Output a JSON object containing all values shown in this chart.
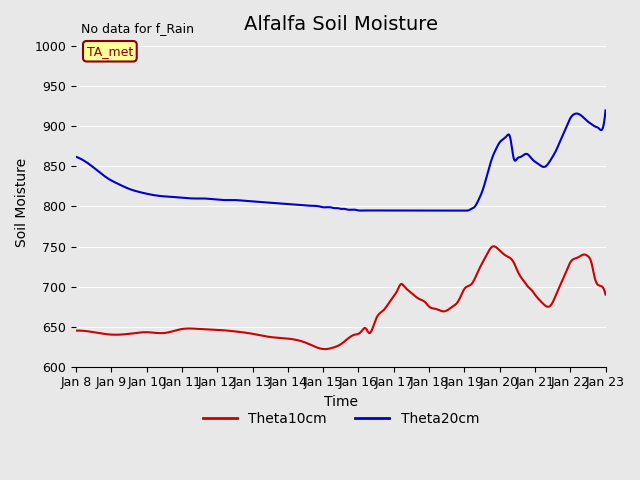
{
  "title": "Alfalfa Soil Moisture",
  "xlabel": "Time",
  "ylabel": "Soil Moisture",
  "annotation_text": "No data for f_Rain",
  "legend_box_text": "TA_met",
  "ylim": [
    600,
    1010
  ],
  "yticks": [
    600,
    650,
    700,
    750,
    800,
    850,
    900,
    950,
    1000
  ],
  "x_labels": [
    "Jan 8",
    "Jan 9",
    "Jan 10",
    "Jan 11",
    "Jan 12",
    "Jan 13",
    "Jan 14",
    "Jan 15",
    "Jan 16",
    "Jan 17",
    "Jan 18",
    "Jan 19",
    "Jan 20",
    "Jan 21",
    "Jan 22",
    "Jan 23"
  ],
  "background_color": "#e8e8e8",
  "plot_bg_color": "#e8e8e8",
  "line_red": "#cc0000",
  "line_blue": "#0000cc",
  "title_fontsize": 14,
  "axis_label_fontsize": 10,
  "tick_fontsize": 9,
  "theta10_x": [
    0,
    0.5,
    1,
    1.5,
    2,
    2.5,
    3,
    3.5,
    4,
    4.5,
    5,
    5.5,
    6,
    6.5,
    7,
    7.1,
    7.3,
    7.5,
    7.7,
    7.9,
    8.0,
    8.1,
    8.2,
    8.3,
    8.5,
    8.7,
    8.9,
    9.0,
    9.1,
    9.2,
    9.3,
    9.5,
    9.7,
    9.9,
    10,
    10.2,
    10.4,
    10.5,
    10.6,
    10.7,
    10.8,
    10.9,
    11,
    11.2,
    11.4,
    11.6,
    11.8,
    12.0,
    12.2,
    12.4,
    12.5,
    12.6,
    12.7,
    12.8,
    12.9,
    13.0,
    13.2,
    13.4,
    13.5,
    13.6,
    13.7,
    13.8,
    13.9,
    14.0,
    14.2,
    14.4,
    14.5,
    14.6,
    14.7,
    14.9,
    15.0
  ],
  "theta10_y": [
    645,
    643,
    640,
    641,
    643,
    642,
    647,
    647,
    646,
    644,
    641,
    637,
    635,
    630,
    622,
    622,
    624,
    628,
    635,
    640,
    641,
    645,
    648,
    642,
    660,
    670,
    682,
    688,
    695,
    703,
    700,
    692,
    685,
    680,
    675,
    672,
    669,
    670,
    673,
    676,
    680,
    688,
    697,
    703,
    720,
    737,
    750,
    745,
    738,
    730,
    720,
    712,
    706,
    700,
    696,
    690,
    680,
    675,
    680,
    690,
    700,
    710,
    720,
    730,
    736,
    740,
    738,
    730,
    710,
    700,
    690
  ],
  "theta20_x": [
    0,
    0.3,
    0.6,
    0.9,
    1.2,
    1.5,
    1.8,
    2.1,
    2.4,
    2.7,
    3.0,
    3.3,
    3.6,
    3.9,
    4.2,
    4.5,
    4.8,
    5.1,
    5.4,
    5.7,
    6.0,
    6.3,
    6.6,
    6.9,
    7.0,
    7.2,
    7.3,
    7.4,
    7.5,
    7.6,
    7.7,
    7.8,
    7.9,
    8.0,
    8.1,
    8.2,
    8.3,
    8.4,
    8.5,
    8.6,
    8.7,
    8.8,
    8.9,
    9.0,
    9.1,
    9.2,
    9.3,
    9.4,
    9.5,
    9.6,
    9.7,
    9.8,
    9.9,
    10.0,
    10.1,
    10.2,
    10.3,
    10.4,
    10.5,
    10.6,
    10.7,
    10.8,
    10.9,
    11.0,
    11.1,
    11.2,
    11.3,
    11.4,
    11.5,
    11.6,
    11.7,
    11.8,
    11.9,
    12.0,
    12.1,
    12.2,
    12.3,
    12.4,
    12.5,
    12.6,
    12.7,
    12.8,
    12.9,
    13.0,
    13.1,
    13.2,
    13.3,
    13.4,
    13.5,
    13.6,
    13.7,
    13.8,
    13.9,
    14.0,
    14.1,
    14.2,
    14.3,
    14.4,
    14.5,
    14.6,
    14.7,
    14.8,
    14.9,
    15.0
  ],
  "theta20_y": [
    862,
    855,
    845,
    835,
    828,
    822,
    818,
    815,
    813,
    812,
    811,
    810,
    810,
    809,
    808,
    808,
    807,
    806,
    805,
    804,
    803,
    802,
    801,
    800,
    799,
    799,
    798,
    798,
    797,
    797,
    796,
    796,
    796,
    795,
    795,
    795,
    795,
    795,
    795,
    795,
    795,
    795,
    795,
    795,
    795,
    795,
    795,
    795,
    795,
    795,
    795,
    795,
    795,
    795,
    795,
    795,
    795,
    795,
    795,
    795,
    795,
    795,
    795,
    795,
    795,
    797,
    800,
    808,
    818,
    832,
    848,
    862,
    872,
    880,
    884,
    888,
    886,
    860,
    860,
    862,
    865,
    865,
    860,
    856,
    853,
    850,
    850,
    855,
    862,
    870,
    880,
    890,
    900,
    910,
    915,
    916,
    914,
    910,
    906,
    903,
    900,
    898,
    896,
    920
  ]
}
